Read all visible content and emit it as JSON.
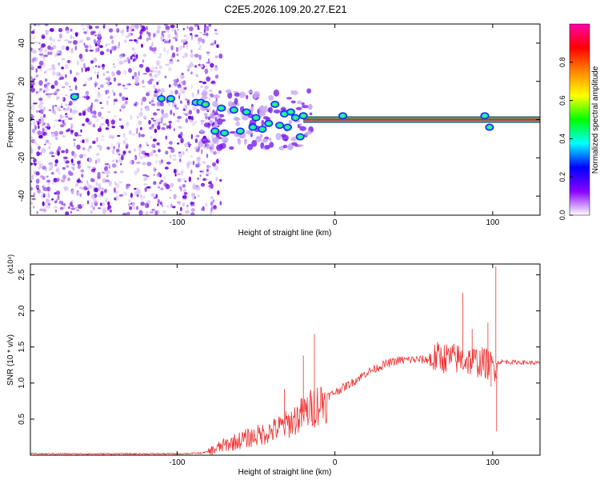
{
  "figure": {
    "title": "C2E5.2026.109.20.27.E21"
  },
  "chart_data": [
    {
      "type": "heatmap",
      "panel": "spectrogram",
      "xlabel": "Height of straight line (km)",
      "ylabel": "Frequency (Hz)",
      "xlim": [
        -193,
        130
      ],
      "ylim": [
        -50,
        50
      ],
      "x_ticks": [
        -100,
        0,
        100
      ],
      "x_tick_labels": [
        "-100",
        "0",
        "100"
      ],
      "y_ticks": [
        -40,
        -20,
        0,
        20,
        40
      ],
      "y_tick_labels": [
        "-40",
        "-20",
        "0",
        "20",
        "40"
      ],
      "carrier_frequency_hz": 0,
      "noise_region_km": [
        -193,
        -85
      ],
      "carrier_clean_from_km": -20,
      "scintillation_points": [
        {
          "x": -165,
          "y": 12
        },
        {
          "x": -110,
          "y": 11
        },
        {
          "x": -104,
          "y": 11
        },
        {
          "x": -88,
          "y": 9
        },
        {
          "x": -85,
          "y": 9
        },
        {
          "x": -82,
          "y": 8
        },
        {
          "x": -76,
          "y": -6
        },
        {
          "x": -72,
          "y": 6
        },
        {
          "x": -70,
          "y": -7
        },
        {
          "x": -64,
          "y": 5
        },
        {
          "x": -60,
          "y": -6
        },
        {
          "x": -56,
          "y": 4
        },
        {
          "x": -52,
          "y": -4
        },
        {
          "x": -50,
          "y": 1
        },
        {
          "x": -46,
          "y": -5
        },
        {
          "x": -42,
          "y": -2
        },
        {
          "x": -38,
          "y": 8
        },
        {
          "x": -35,
          "y": -3
        },
        {
          "x": -32,
          "y": 3
        },
        {
          "x": -30,
          "y": -4
        },
        {
          "x": -28,
          "y": 4
        },
        {
          "x": -25,
          "y": 1
        },
        {
          "x": -22,
          "y": -9
        },
        {
          "x": -20,
          "y": 2
        },
        {
          "x": 5,
          "y": 2
        },
        {
          "x": 95,
          "y": 2
        },
        {
          "x": 98,
          "y": -4
        }
      ],
      "colorbar": {
        "label": "Normalized spectral amplitude",
        "range": [
          0,
          1
        ],
        "ticks": [
          0.0,
          0.2,
          0.4,
          0.6,
          0.8
        ],
        "tick_labels": [
          "0.0",
          "0.2",
          "0.4",
          "0.6",
          "0.8"
        ],
        "colormap": [
          "#ffffff",
          "#8800ff",
          "#0000ff",
          "#00ffff",
          "#00ff00",
          "#ffff00",
          "#ff8800",
          "#ff0000",
          "#ff00aa"
        ]
      }
    },
    {
      "type": "line",
      "panel": "snr",
      "xlabel": "Height of straight line (km)",
      "ylabel": "SNR (10 * v/v)",
      "y_scale_label": "(x10⁴)",
      "xlim": [
        -193,
        130
      ],
      "ylim": [
        0,
        2.65
      ],
      "x_ticks": [
        -100,
        0,
        100
      ],
      "x_tick_labels": [
        "-100",
        "0",
        "100"
      ],
      "y_ticks": [
        0.5,
        1.0,
        1.5,
        2.0,
        2.5
      ],
      "y_tick_labels": [
        "0.5",
        "1.0",
        "1.5",
        "2.0",
        "2.5"
      ],
      "series_color": "#ee3333",
      "envelope": {
        "x": [
          -193,
          -100,
          -85,
          -80,
          -70,
          -60,
          -50,
          -40,
          -30,
          -20,
          -10,
          0,
          10,
          20,
          30,
          40,
          50,
          60,
          65,
          80,
          95,
          100,
          105,
          130
        ],
        "y": [
          0.02,
          0.02,
          0.03,
          0.05,
          0.15,
          0.22,
          0.28,
          0.35,
          0.45,
          0.6,
          0.75,
          0.88,
          1.0,
          1.15,
          1.25,
          1.32,
          1.33,
          1.33,
          1.38,
          1.35,
          1.3,
          1.25,
          1.3,
          1.28
        ]
      },
      "spikes": [
        {
          "x": -13,
          "y": 1.68
        },
        {
          "x": -20,
          "y": 1.38
        },
        {
          "x": -32,
          "y": 0.92
        },
        {
          "x": 81,
          "y": 2.25
        },
        {
          "x": 87,
          "y": 1.75
        },
        {
          "x": 97,
          "y": 1.84
        },
        {
          "x": 99,
          "y": 0.95
        },
        {
          "x": 102,
          "y": 2.62
        },
        {
          "x": 102.5,
          "y": 0.33
        }
      ]
    }
  ]
}
